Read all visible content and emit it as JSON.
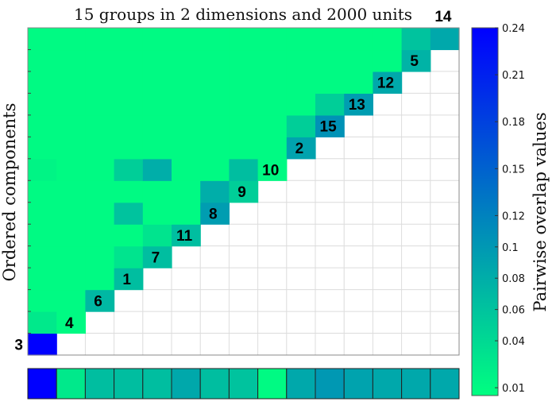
{
  "chart_data": {
    "type": "heatmap",
    "title": "15 groups in 2 dimensions and 2000 units",
    "ylabel": "Ordered components",
    "colorbar": {
      "label": "Pairwise overlap values",
      "tick_values": [
        0.01,
        0.04,
        0.06,
        0.08,
        0.1,
        0.12,
        0.15,
        0.18,
        0.21,
        0.24
      ],
      "tick_labels": [
        "0.01",
        "0.04",
        "0.06",
        "0.08",
        "0.1",
        "0.12",
        "0.15",
        "0.18",
        "0.21",
        "0.24"
      ],
      "vmin": 0.005,
      "vmax": 0.24,
      "color_low": "#00ff80",
      "color_high": "#0000ff"
    },
    "component_order": [
      "3",
      "4",
      "6",
      "1",
      "7",
      "11",
      "8",
      "9",
      "10",
      "2",
      "15",
      "13",
      "12",
      "5",
      "14"
    ],
    "matrix": [
      [
        0.24,
        null,
        null,
        null,
        null,
        null,
        null,
        null,
        null,
        null,
        null,
        null,
        null,
        null,
        null
      ],
      [
        0.025,
        0.01,
        null,
        null,
        null,
        null,
        null,
        null,
        null,
        null,
        null,
        null,
        null,
        null,
        null
      ],
      [
        0.01,
        0.01,
        0.07,
        null,
        null,
        null,
        null,
        null,
        null,
        null,
        null,
        null,
        null,
        null,
        null
      ],
      [
        0.01,
        0.01,
        0.01,
        0.065,
        null,
        null,
        null,
        null,
        null,
        null,
        null,
        null,
        null,
        null,
        null
      ],
      [
        0.01,
        0.01,
        0.01,
        0.03,
        0.065,
        null,
        null,
        null,
        null,
        null,
        null,
        null,
        null,
        null,
        null
      ],
      [
        0.01,
        0.01,
        0.01,
        0.01,
        0.03,
        0.065,
        null,
        null,
        null,
        null,
        null,
        null,
        null,
        null,
        null
      ],
      [
        0.01,
        0.01,
        0.01,
        0.06,
        0.01,
        0.01,
        0.095,
        null,
        null,
        null,
        null,
        null,
        null,
        null,
        null
      ],
      [
        0.01,
        0.01,
        0.01,
        0.01,
        0.01,
        0.01,
        0.08,
        0.05,
        null,
        null,
        null,
        null,
        null,
        null,
        null
      ],
      [
        0.015,
        0.01,
        0.01,
        0.05,
        0.08,
        0.01,
        0.01,
        0.065,
        0.01,
        null,
        null,
        null,
        null,
        null,
        null
      ],
      [
        0.01,
        0.01,
        0.01,
        0.01,
        0.01,
        0.01,
        0.01,
        0.01,
        0.01,
        0.09,
        null,
        null,
        null,
        null,
        null
      ],
      [
        0.01,
        0.01,
        0.01,
        0.01,
        0.01,
        0.01,
        0.01,
        0.01,
        0.01,
        0.05,
        0.105,
        null,
        null,
        null,
        null
      ],
      [
        0.01,
        0.01,
        0.01,
        0.01,
        0.01,
        0.01,
        0.01,
        0.01,
        0.01,
        0.01,
        0.05,
        0.095,
        null,
        null,
        null
      ],
      [
        0.01,
        0.01,
        0.01,
        0.01,
        0.01,
        0.01,
        0.01,
        0.01,
        0.01,
        0.01,
        0.01,
        0.01,
        0.085,
        null,
        null
      ],
      [
        0.01,
        0.01,
        0.01,
        0.01,
        0.01,
        0.01,
        0.01,
        0.01,
        0.01,
        0.01,
        0.01,
        0.01,
        0.01,
        0.075,
        null
      ],
      [
        0.01,
        0.01,
        0.01,
        0.01,
        0.01,
        0.01,
        0.01,
        0.01,
        0.01,
        0.01,
        0.01,
        0.01,
        0.01,
        0.06,
        0.085
      ]
    ],
    "summary_bar": [
      0.24,
      0.025,
      0.065,
      0.065,
      0.065,
      0.085,
      0.065,
      0.06,
      0.01,
      0.085,
      0.1,
      0.09,
      0.085,
      0.085,
      0.085
    ],
    "grid": true
  }
}
